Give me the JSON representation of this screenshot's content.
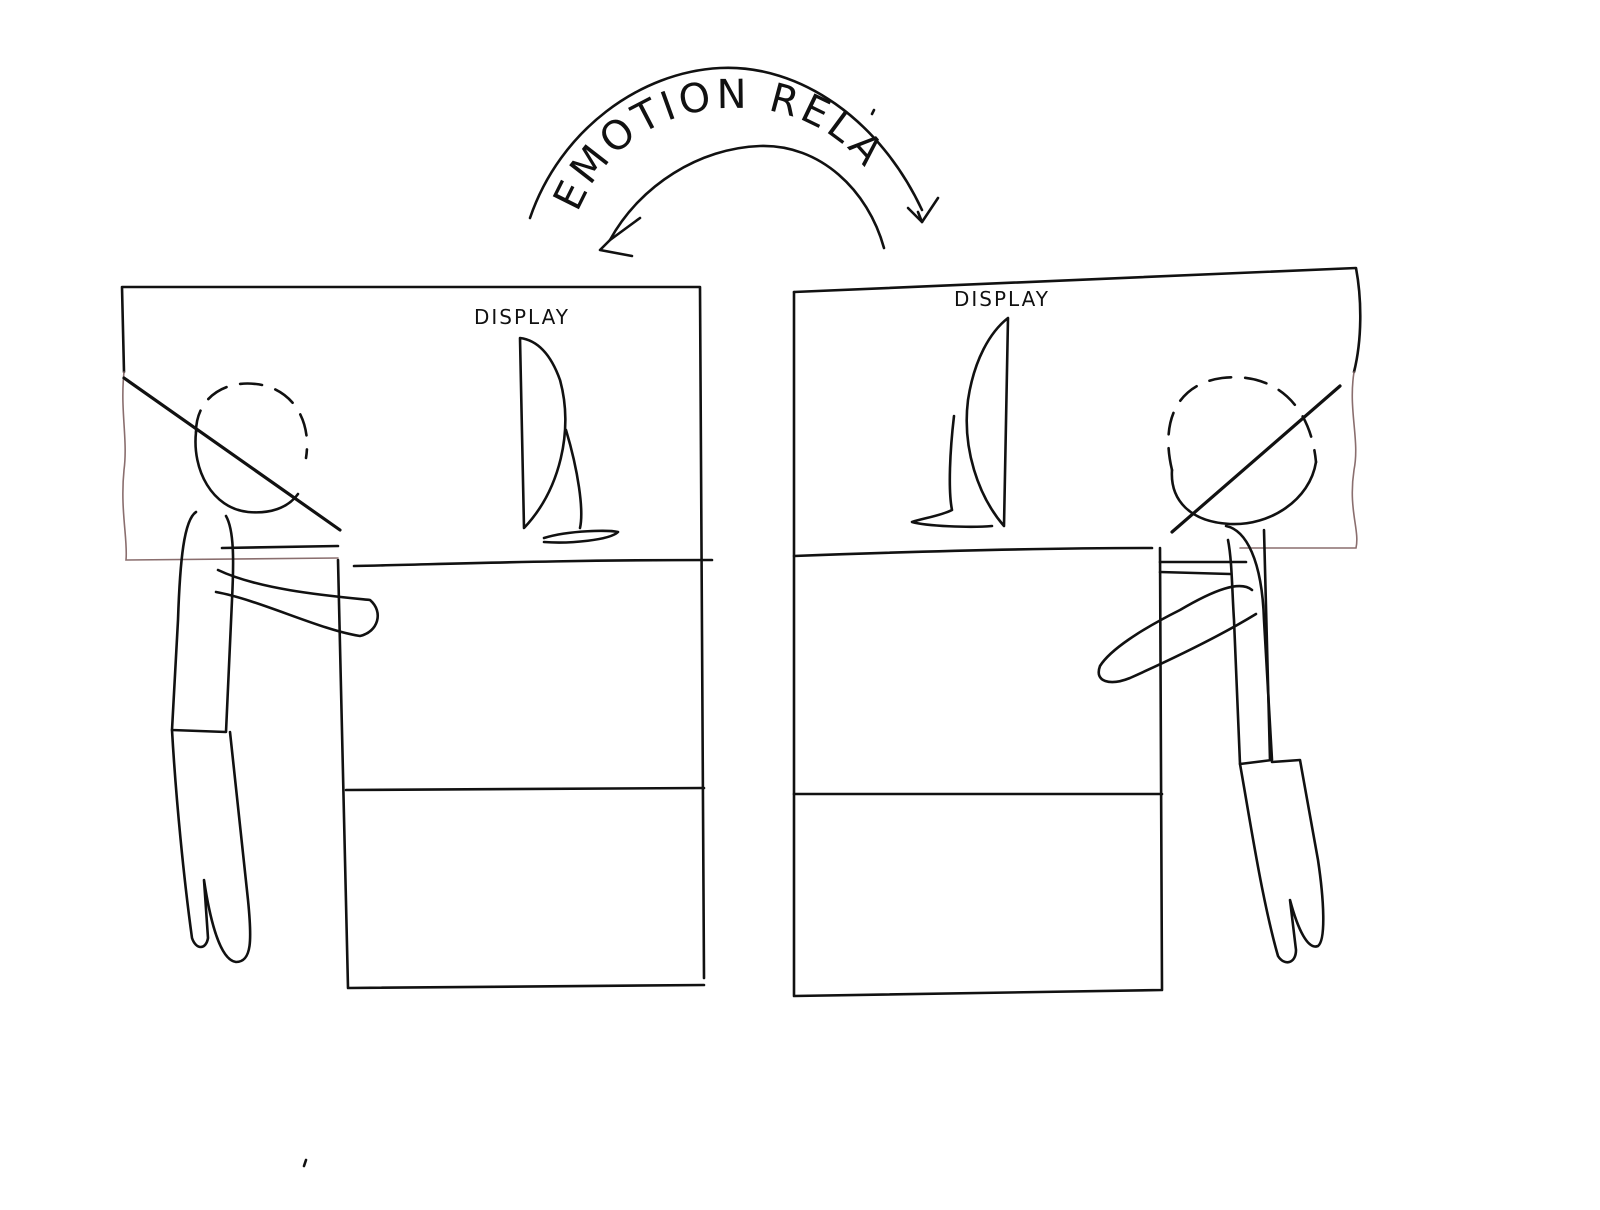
{
  "diagram": {
    "arrow_label": "EMOTION RELAY",
    "left_booth": {
      "display_label": "DISPLAY"
    },
    "right_booth": {
      "display_label": "DISPLAY"
    }
  }
}
